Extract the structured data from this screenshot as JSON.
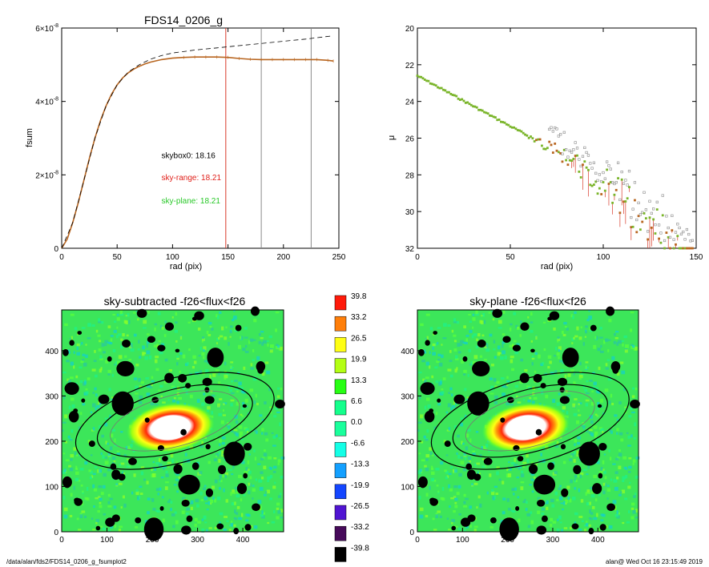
{
  "footer": {
    "path": "/data/alan/fds2/FDS14_0206_g_fsumplot2",
    "stamp": "alan@  Wed Oct 16 23:15:49 2019"
  },
  "colors": {
    "curve": "#b8651f",
    "curve_alt": "#6f8f1a",
    "range": "#d83a2a",
    "vline_gray": "#8a8a8a",
    "points_green": "#7ab52a",
    "points_gray": "#888888",
    "ellipse": "#000000",
    "mask": "#000000"
  },
  "chart_data": [
    {
      "type": "line",
      "title": "FDS14_0206_g",
      "xlabel": "rad (pix)",
      "ylabel": "fsum",
      "xlim": [
        0,
        250
      ],
      "ylim": [
        0,
        6e-08
      ],
      "x_ticks": [
        "0",
        "50",
        "100",
        "150",
        "200",
        "250"
      ],
      "y_ticks": [
        {
          "base": "0",
          "exp": ""
        },
        {
          "base": "2×10",
          "exp": "-8"
        },
        {
          "base": "4×10",
          "exp": "-8"
        },
        {
          "base": "6×10",
          "exp": "-8"
        }
      ],
      "series": [
        {
          "style": "solid",
          "x": [
            0,
            5,
            10,
            15,
            20,
            25,
            30,
            35,
            40,
            45,
            50,
            55,
            60,
            65,
            70,
            75,
            80,
            90,
            100,
            110,
            120,
            130,
            140,
            150,
            160,
            170,
            180,
            190,
            200,
            210,
            220,
            230,
            240,
            245
          ],
          "y": [
            0,
            2.5e-09,
            7e-09,
            1.25e-08,
            1.85e-08,
            2.45e-08,
            3e-08,
            3.48e-08,
            3.88e-08,
            4.2e-08,
            4.45e-08,
            4.64e-08,
            4.78e-08,
            4.88e-08,
            4.96e-08,
            5.02e-08,
            5.07e-08,
            5.14e-08,
            5.18e-08,
            5.2e-08,
            5.21e-08,
            5.21e-08,
            5.21e-08,
            5.2e-08,
            5.17e-08,
            5.15e-08,
            5.14e-08,
            5.14e-08,
            5.14e-08,
            5.14e-08,
            5.14e-08,
            5.14e-08,
            5.12e-08,
            5.1e-08
          ]
        },
        {
          "style": "dashed",
          "x": [
            0,
            10,
            20,
            30,
            40,
            50,
            60,
            70,
            80,
            90,
            100,
            120,
            140,
            160,
            180,
            200,
            220,
            245
          ],
          "y": [
            0,
            7e-09,
            1.85e-08,
            3e-08,
            3.88e-08,
            4.45e-08,
            4.8e-08,
            5e-08,
            5.15e-08,
            5.25e-08,
            5.32e-08,
            5.4e-08,
            5.46e-08,
            5.52e-08,
            5.58e-08,
            5.64e-08,
            5.7e-08,
            5.79e-08
          ]
        }
      ],
      "vlines": [
        {
          "x": 148,
          "color": "range"
        },
        {
          "x": 180,
          "color": "gray"
        },
        {
          "x": 225,
          "color": "gray"
        }
      ],
      "annotations": [
        {
          "text": "skybox0: 18.16",
          "color": "#000000",
          "x": 90,
          "y": 2.45e-08
        },
        {
          "text": "sky-range: 18.21",
          "color": "#e0201a",
          "x": 90,
          "y": 1.85e-08
        },
        {
          "text": "sky-plane: 18.21",
          "color": "#28c828",
          "x": 90,
          "y": 1.22e-08
        }
      ]
    },
    {
      "type": "scatter",
      "title": "",
      "xlabel": "rad (pix)",
      "ylabel": "μ",
      "xlim": [
        0,
        150
      ],
      "ylim": [
        32,
        20
      ],
      "x_ticks": [
        "0",
        "50",
        "100",
        "150"
      ],
      "y_ticks": [
        "20",
        "22",
        "24",
        "26",
        "28",
        "30",
        "32"
      ],
      "profile": {
        "start": 22.6,
        "slope_per_pix": 0.055,
        "step": 1
      }
    },
    {
      "type": "heatmap",
      "title": "sky-subtracted -f26<flux<f26",
      "xlim": [
        0,
        490
      ],
      "ylim": [
        0,
        490
      ],
      "x_ticks": [
        "0",
        "100",
        "200",
        "300",
        "400"
      ],
      "y_ticks": [
        "0",
        "100",
        "200",
        "300",
        "400"
      ],
      "ellipses_data": {
        "cx": 245,
        "cy": 245,
        "angle_deg": 15,
        "axes": [
          [
            165,
            90
          ],
          [
            130,
            68
          ],
          [
            110,
            55
          ]
        ]
      }
    },
    {
      "type": "heatmap",
      "title": "sky-plane -f26<flux<f26",
      "xlim": [
        0,
        490
      ],
      "ylim": [
        0,
        490
      ],
      "x_ticks": [
        "0",
        "100",
        "200",
        "300",
        "400"
      ],
      "y_ticks": [
        "0",
        "100",
        "200",
        "300",
        "400"
      ]
    },
    {
      "type": "colorbar",
      "labels": [
        "39.8",
        "33.2",
        "26.5",
        "19.9",
        "13.3",
        "6.6",
        "0.0",
        "-6.6",
        "-13.3",
        "-19.9",
        "-26.5",
        "-33.2",
        "-39.8"
      ],
      "colors": [
        "#ff1a0a",
        "#ff7f0a",
        "#ffff14",
        "#b4ff14",
        "#28ff14",
        "#14ff8c",
        "#1aff9c",
        "#14ffe6",
        "#14a0ff",
        "#1446ff",
        "#5014d2",
        "#460a5a",
        "#000000"
      ]
    }
  ]
}
